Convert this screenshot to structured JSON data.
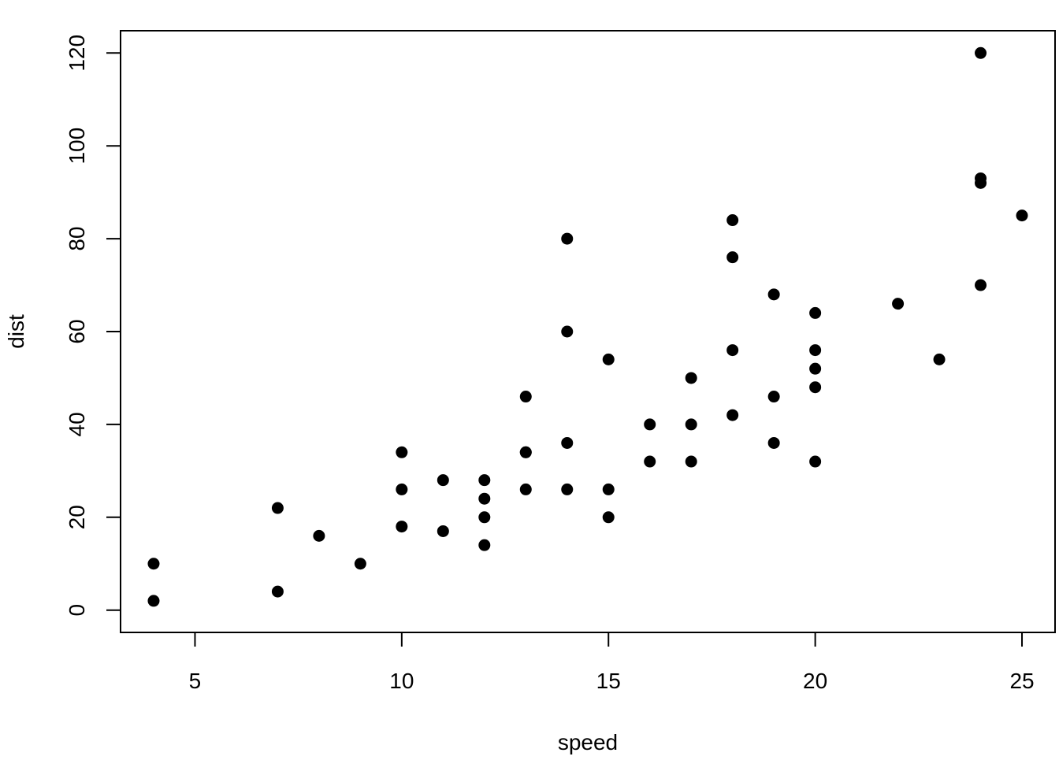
{
  "chart_data": {
    "type": "scatter",
    "title": "",
    "xlabel": "speed",
    "ylabel": "dist",
    "xlim": [
      3.2,
      25.8
    ],
    "ylim": [
      -4.8,
      124.8
    ],
    "x_ticks": [
      5,
      10,
      15,
      20,
      25
    ],
    "y_ticks": [
      0,
      20,
      40,
      60,
      80,
      100,
      120
    ],
    "grid": false,
    "marker_color": "#000000",
    "points": [
      {
        "x": 4,
        "y": 2
      },
      {
        "x": 4,
        "y": 10
      },
      {
        "x": 7,
        "y": 4
      },
      {
        "x": 7,
        "y": 22
      },
      {
        "x": 8,
        "y": 16
      },
      {
        "x": 9,
        "y": 10
      },
      {
        "x": 10,
        "y": 18
      },
      {
        "x": 10,
        "y": 26
      },
      {
        "x": 10,
        "y": 34
      },
      {
        "x": 11,
        "y": 17
      },
      {
        "x": 11,
        "y": 28
      },
      {
        "x": 12,
        "y": 14
      },
      {
        "x": 12,
        "y": 20
      },
      {
        "x": 12,
        "y": 24
      },
      {
        "x": 12,
        "y": 28
      },
      {
        "x": 13,
        "y": 26
      },
      {
        "x": 13,
        "y": 34
      },
      {
        "x": 13,
        "y": 34
      },
      {
        "x": 13,
        "y": 46
      },
      {
        "x": 14,
        "y": 26
      },
      {
        "x": 14,
        "y": 36
      },
      {
        "x": 14,
        "y": 60
      },
      {
        "x": 14,
        "y": 80
      },
      {
        "x": 15,
        "y": 20
      },
      {
        "x": 15,
        "y": 26
      },
      {
        "x": 15,
        "y": 54
      },
      {
        "x": 16,
        "y": 32
      },
      {
        "x": 16,
        "y": 40
      },
      {
        "x": 17,
        "y": 32
      },
      {
        "x": 17,
        "y": 40
      },
      {
        "x": 17,
        "y": 50
      },
      {
        "x": 18,
        "y": 42
      },
      {
        "x": 18,
        "y": 56
      },
      {
        "x": 18,
        "y": 76
      },
      {
        "x": 18,
        "y": 84
      },
      {
        "x": 19,
        "y": 36
      },
      {
        "x": 19,
        "y": 46
      },
      {
        "x": 19,
        "y": 68
      },
      {
        "x": 20,
        "y": 32
      },
      {
        "x": 20,
        "y": 48
      },
      {
        "x": 20,
        "y": 52
      },
      {
        "x": 20,
        "y": 56
      },
      {
        "x": 20,
        "y": 64
      },
      {
        "x": 22,
        "y": 66
      },
      {
        "x": 23,
        "y": 54
      },
      {
        "x": 24,
        "y": 70
      },
      {
        "x": 24,
        "y": 92
      },
      {
        "x": 24,
        "y": 93
      },
      {
        "x": 24,
        "y": 120
      },
      {
        "x": 25,
        "y": 85
      }
    ]
  }
}
